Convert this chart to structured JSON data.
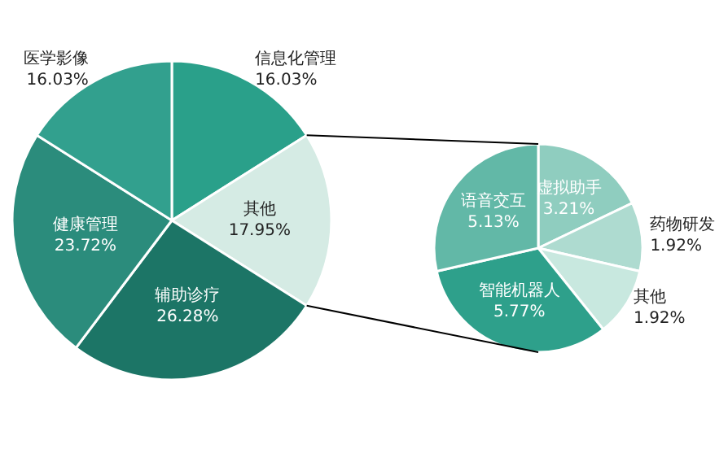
{
  "chart_data": [
    {
      "type": "pie",
      "categories": [
        "信息化管理",
        "其他",
        "辅助诊疗",
        "健康管理",
        "医学影像"
      ],
      "values": [
        16.03,
        17.95,
        26.28,
        23.72,
        16.03
      ],
      "colors": [
        "#2aa08a",
        "#d5ebe4",
        "#1c7566",
        "#2b8c7c",
        "#32a08e"
      ],
      "value_labels": [
        "16.03%",
        "17.95%",
        "26.28%",
        "23.72%",
        "16.03%"
      ]
    },
    {
      "type": "pie",
      "categories": [
        "虚拟助手",
        "药物研发",
        "其他",
        "智能机器人",
        "语音交互"
      ],
      "values": [
        3.21,
        1.92,
        1.92,
        5.77,
        5.13
      ],
      "colors": [
        "#8fcdbf",
        "#aedbd0",
        "#c8e8df",
        "#2ea08b",
        "#62b8a7"
      ],
      "value_labels": [
        "3.21%",
        "1.92%",
        "1.92%",
        "5.77%",
        "5.13%"
      ]
    }
  ]
}
